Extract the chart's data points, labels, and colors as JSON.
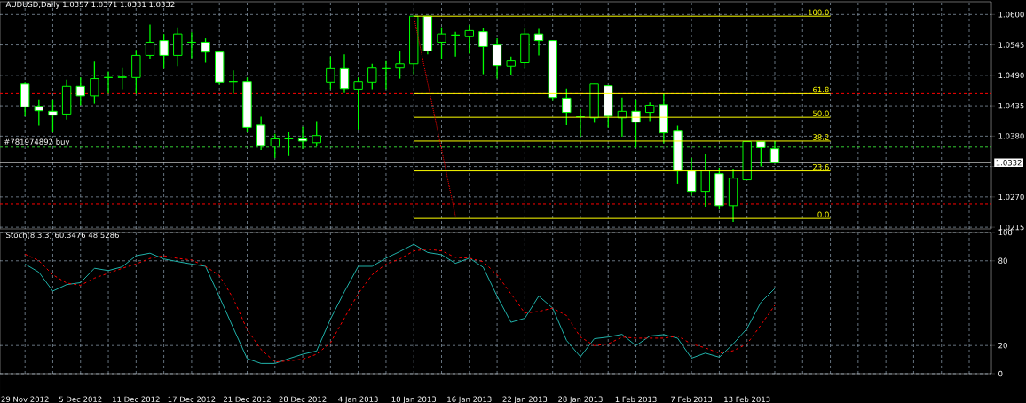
{
  "chart_data": [
    {
      "type": "candlestick",
      "title": "AUDUSD,Daily 1.0357 1.0371 1.0331 1.0332",
      "color": "#00ff00",
      "grid": true,
      "tick_labels": "y",
      "categories": [
        null,
        null,
        null,
        null,
        null,
        null,
        null,
        null,
        null,
        null,
        null,
        null,
        null,
        null,
        null,
        null,
        null,
        null,
        null,
        null,
        null,
        null,
        null,
        null,
        null,
        null,
        null,
        null,
        null,
        null,
        null,
        null,
        null,
        null,
        null,
        null,
        null,
        null,
        null,
        null,
        null,
        null,
        null,
        null,
        null,
        null,
        null,
        null,
        null,
        null,
        null,
        null,
        null,
        null,
        null,
        null,
        null,
        null,
        null,
        null,
        null,
        null,
        null,
        null,
        null,
        null,
        null,
        null,
        null,
        null
      ],
      "ohlc": [
        [
          1.0474,
          1.0478,
          1.0416,
          1.0433
        ],
        [
          1.0434,
          1.0445,
          1.0399,
          1.0426
        ],
        [
          1.0425,
          1.0445,
          1.0387,
          1.0418
        ],
        [
          1.042,
          1.0482,
          1.041,
          1.047
        ],
        [
          1.047,
          1.0486,
          1.0436,
          1.0453
        ],
        [
          1.0453,
          1.0515,
          1.0439,
          1.0484
        ],
        [
          1.0486,
          1.0497,
          1.0457,
          1.0486
        ],
        [
          1.0486,
          1.0503,
          1.0465,
          1.0487
        ],
        [
          1.0486,
          1.0536,
          1.0457,
          1.0526
        ],
        [
          1.0526,
          1.0582,
          1.052,
          1.055
        ],
        [
          1.0553,
          1.0565,
          1.0502,
          1.0526
        ],
        [
          1.0526,
          1.0577,
          1.0507,
          1.0565
        ],
        [
          1.055,
          1.0568,
          1.0521,
          1.055
        ],
        [
          1.055,
          1.0557,
          1.0513,
          1.0532
        ],
        [
          1.0532,
          1.0534,
          1.0473,
          1.0478
        ],
        [
          1.0479,
          1.0499,
          1.0457,
          1.0479
        ],
        [
          1.0479,
          1.0486,
          1.0387,
          1.0396
        ],
        [
          1.04,
          1.0415,
          1.0355,
          1.0363
        ],
        [
          1.0362,
          1.0384,
          1.0341,
          1.0375
        ],
        [
          1.0375,
          1.0387,
          1.0344,
          1.0375
        ],
        [
          1.0375,
          1.0397,
          1.0357,
          1.0371
        ],
        [
          1.0368,
          1.0407,
          1.0363,
          1.0381
        ],
        [
          1.0478,
          1.0524,
          1.0465,
          1.0502
        ],
        [
          1.0502,
          1.0528,
          1.0458,
          1.0466
        ],
        [
          1.0465,
          1.0486,
          1.0392,
          1.0479
        ],
        [
          1.0478,
          1.0511,
          1.0465,
          1.0503
        ],
        [
          1.0502,
          1.0516,
          1.0465,
          1.0502
        ],
        [
          1.0503,
          1.0534,
          1.0484,
          1.0511
        ],
        [
          1.0511,
          1.0597,
          1.0492,
          1.0597
        ],
        [
          1.0597,
          1.0597,
          1.0528,
          1.0534
        ],
        [
          1.055,
          1.0577,
          1.052,
          1.0565
        ],
        [
          1.0563,
          1.0569,
          1.0524,
          1.0563
        ],
        [
          1.056,
          1.0581,
          1.0529,
          1.0571
        ],
        [
          1.0569,
          1.0576,
          1.0492,
          1.0542
        ],
        [
          1.0545,
          1.0557,
          1.0484,
          1.0508
        ],
        [
          1.0507,
          1.0524,
          1.0491,
          1.0516
        ],
        [
          1.0513,
          1.0576,
          1.0502,
          1.0565
        ],
        [
          1.0565,
          1.0574,
          1.0526,
          1.0553
        ],
        [
          1.0553,
          1.0553,
          1.0444,
          1.045
        ],
        [
          1.0449,
          1.0466,
          1.04,
          1.0423
        ],
        [
          1.0415,
          1.0429,
          1.0379,
          1.0415
        ],
        [
          1.0413,
          1.0474,
          1.0404,
          1.0474
        ],
        [
          1.0471,
          1.0471,
          1.0396,
          1.0416
        ],
        [
          1.0413,
          1.045,
          1.0379,
          1.0425
        ],
        [
          1.0425,
          1.0445,
          1.0359,
          1.0405
        ],
        [
          1.0423,
          1.0441,
          1.0407,
          1.0436
        ],
        [
          1.0437,
          1.0457,
          1.0367,
          1.0386
        ],
        [
          1.0389,
          1.0399,
          1.0294,
          1.0317
        ],
        [
          1.0317,
          1.0341,
          1.0272,
          1.028
        ],
        [
          1.028,
          1.0347,
          1.0252,
          1.0318
        ],
        [
          1.0312,
          1.0323,
          1.0247,
          1.0254
        ],
        [
          1.0254,
          1.0321,
          1.0225,
          1.0304
        ],
        [
          1.0301,
          1.037,
          1.0301,
          1.037
        ],
        [
          1.037,
          1.037,
          1.0325,
          1.0359
        ],
        [
          1.0357,
          1.0371,
          1.0331,
          1.0332
        ],
        null,
        null,
        null,
        null,
        null,
        null,
        null,
        null,
        null,
        null,
        null,
        null,
        null,
        null,
        null
      ],
      "series": [
        {
          "type": "line",
          "name": "100.0",
          "color": "#ffff00",
          "values": [
            null,
            null,
            null,
            null,
            null,
            null,
            null,
            null,
            null,
            null,
            null,
            null,
            null,
            null,
            null,
            null,
            null,
            null,
            null,
            null,
            null,
            null,
            null,
            null,
            null,
            null,
            null,
            null,
            1.0597,
            1.0597,
            1.0597,
            1.0597,
            1.0597,
            1.0597,
            1.0597,
            1.0597,
            1.0597,
            1.0597,
            1.0597,
            1.0597,
            1.0597,
            1.0597,
            1.0597,
            1.0597,
            1.0597,
            1.0597,
            1.0597,
            1.0597,
            1.0597,
            1.0597,
            1.0597,
            1.0597,
            1.0597,
            1.0597,
            1.0597,
            1.0597,
            1.0597,
            1.0597,
            1.0597,
            null,
            null,
            null,
            null,
            null,
            null,
            null,
            null,
            null,
            null,
            null
          ]
        },
        {
          "type": "line",
          "name": "61.8",
          "color": "#ffff00",
          "values": [
            null,
            null,
            null,
            null,
            null,
            null,
            null,
            null,
            null,
            null,
            null,
            null,
            null,
            null,
            null,
            null,
            null,
            null,
            null,
            null,
            null,
            null,
            null,
            null,
            null,
            null,
            null,
            null,
            1.0457,
            1.0457,
            1.0457,
            1.0457,
            1.0457,
            1.0457,
            1.0457,
            1.0457,
            1.0457,
            1.0457,
            1.0457,
            1.0457,
            1.0457,
            1.0457,
            1.0457,
            1.0457,
            1.0457,
            1.0457,
            1.0457,
            1.0457,
            1.0457,
            1.0457,
            1.0457,
            1.0457,
            1.0457,
            1.0457,
            1.0457,
            1.0457,
            1.0457,
            1.0457,
            1.0457,
            null,
            null,
            null,
            null,
            null,
            null,
            null,
            null,
            null,
            null,
            null
          ]
        },
        {
          "type": "line",
          "name": "50.0",
          "color": "#ffff00",
          "values": [
            null,
            null,
            null,
            null,
            null,
            null,
            null,
            null,
            null,
            null,
            null,
            null,
            null,
            null,
            null,
            null,
            null,
            null,
            null,
            null,
            null,
            null,
            null,
            null,
            null,
            null,
            null,
            null,
            1.0414,
            1.0414,
            1.0414,
            1.0414,
            1.0414,
            1.0414,
            1.0414,
            1.0414,
            1.0414,
            1.0414,
            1.0414,
            1.0414,
            1.0414,
            1.0414,
            1.0414,
            1.0414,
            1.0414,
            1.0414,
            1.0414,
            1.0414,
            1.0414,
            1.0414,
            1.0414,
            1.0414,
            1.0414,
            1.0414,
            1.0414,
            1.0414,
            1.0414,
            1.0414,
            1.0414,
            null,
            null,
            null,
            null,
            null,
            null,
            null,
            null,
            null,
            null,
            null
          ]
        },
        {
          "type": "line",
          "name": "38.2",
          "color": "#ffff00",
          "values": [
            null,
            null,
            null,
            null,
            null,
            null,
            null,
            null,
            null,
            null,
            null,
            null,
            null,
            null,
            null,
            null,
            null,
            null,
            null,
            null,
            null,
            null,
            null,
            null,
            null,
            null,
            null,
            null,
            1.0371,
            1.0371,
            1.0371,
            1.0371,
            1.0371,
            1.0371,
            1.0371,
            1.0371,
            1.0371,
            1.0371,
            1.0371,
            1.0371,
            1.0371,
            1.0371,
            1.0371,
            1.0371,
            1.0371,
            1.0371,
            1.0371,
            1.0371,
            1.0371,
            1.0371,
            1.0371,
            1.0371,
            1.0371,
            1.0371,
            1.0371,
            1.0371,
            1.0371,
            1.0371,
            1.0371,
            null,
            null,
            null,
            null,
            null,
            null,
            null,
            null,
            null,
            null,
            null
          ]
        },
        {
          "type": "line",
          "name": "23.6",
          "color": "#ffff00",
          "values": [
            null,
            null,
            null,
            null,
            null,
            null,
            null,
            null,
            null,
            null,
            null,
            null,
            null,
            null,
            null,
            null,
            null,
            null,
            null,
            null,
            null,
            null,
            null,
            null,
            null,
            null,
            null,
            null,
            1.0317,
            1.0317,
            1.0317,
            1.0317,
            1.0317,
            1.0317,
            1.0317,
            1.0317,
            1.0317,
            1.0317,
            1.0317,
            1.0317,
            1.0317,
            1.0317,
            1.0317,
            1.0317,
            1.0317,
            1.0317,
            1.0317,
            1.0317,
            1.0317,
            1.0317,
            1.0317,
            1.0317,
            1.0317,
            1.0317,
            1.0317,
            1.0317,
            1.0317,
            1.0317,
            1.0317,
            null,
            null,
            null,
            null,
            null,
            null,
            null,
            null,
            null,
            null,
            null
          ]
        },
        {
          "type": "line",
          "name": "0.0",
          "color": "#ffff00",
          "values": [
            null,
            null,
            null,
            null,
            null,
            null,
            null,
            null,
            null,
            null,
            null,
            null,
            null,
            null,
            null,
            null,
            null,
            null,
            null,
            null,
            null,
            null,
            null,
            null,
            null,
            null,
            null,
            null,
            1.0231,
            1.0231,
            1.0231,
            1.0231,
            1.0231,
            1.0231,
            1.0231,
            1.0231,
            1.0231,
            1.0231,
            1.0231,
            1.0231,
            1.0231,
            1.0231,
            1.0231,
            1.0231,
            1.0231,
            1.0231,
            1.0231,
            1.0231,
            1.0231,
            1.0231,
            1.0231,
            1.0231,
            1.0231,
            1.0231,
            1.0231,
            1.0231,
            1.0231,
            1.0231,
            1.0231,
            null,
            null,
            null,
            null,
            null,
            null,
            null,
            null,
            null,
            null,
            null
          ]
        },
        {
          "type": "line",
          "color": "#ff0000",
          "line_style": "dotted",
          "values": [
            null,
            null,
            null,
            null,
            null,
            null,
            null,
            null,
            null,
            null,
            null,
            null,
            null,
            null,
            null,
            null,
            null,
            null,
            null,
            null,
            null,
            null,
            null,
            null,
            null,
            null,
            null,
            null,
            1.0597,
            1.0476,
            1.0356,
            1.0235,
            null,
            null,
            null,
            null,
            null,
            null,
            null,
            null,
            null,
            null,
            null,
            null,
            null,
            null,
            null,
            null,
            null,
            null,
            null,
            null,
            null,
            null,
            null,
            null,
            null,
            null,
            null,
            null,
            null,
            null,
            null,
            null,
            null,
            null,
            null,
            null,
            null,
            null
          ]
        }
      ],
      "ref_lines": [
        {
          "axis": "y",
          "value": 1.0457,
          "color": "#ff0000",
          "line_style": "dashed"
        },
        {
          "axis": "y",
          "value": 1.0257,
          "color": "#ff0000",
          "line_style": "dashed"
        },
        {
          "axis": "y",
          "value": 1.036,
          "color": "#32cd32",
          "line_style": "dashed",
          "label": "#781974892 buy"
        },
        {
          "axis": "y",
          "value": 1.0332,
          "color": "#c0c0c0",
          "line_style": "solid",
          "label": "1.0332"
        }
      ],
      "ylim": [
        1.0212,
        1.0623
      ],
      "yticks": [
        {
          "value": 1.06,
          "label": "1.0600"
        },
        {
          "value": 1.0545,
          "label": "1.0545"
        },
        {
          "value": 1.049,
          "label": "1.0490"
        },
        {
          "value": 1.0435,
          "label": "1.0435"
        },
        {
          "value": 1.038,
          "label": "1.0380"
        },
        {
          "value": 1.0325,
          "label": null
        },
        {
          "value": 1.027,
          "label": "1.0270"
        },
        {
          "value": 1.0215,
          "label": "1.0215"
        }
      ]
    },
    {
      "type": "line",
      "title": "Stoch(8,3,3) 60.3476 48.5286",
      "grid": true,
      "categories": [
        "29 Nov 2012",
        null,
        null,
        null,
        "5 Dec 2012",
        null,
        null,
        null,
        "11 Dec 2012",
        null,
        null,
        null,
        "17 Dec 2012",
        null,
        null,
        null,
        "21 Dec 2012",
        null,
        null,
        null,
        "28 Dec 2012",
        null,
        null,
        null,
        "4 Jan 2013",
        null,
        null,
        null,
        "10 Jan 2013",
        null,
        null,
        null,
        "16 Jan 2013",
        null,
        null,
        null,
        "22 Jan 2013",
        null,
        null,
        null,
        "28 Jan 2013",
        null,
        null,
        null,
        "1 Feb 2013",
        null,
        null,
        null,
        "7 Feb 2013",
        null,
        null,
        null,
        "13 Feb 2013",
        null,
        null,
        null,
        null,
        null,
        null,
        null,
        null,
        null,
        null,
        null,
        null,
        null,
        null,
        null,
        null,
        null
      ],
      "series": [
        {
          "color": "#20b2aa",
          "line_style": "solid",
          "values": [
            77.7,
            71.9,
            58.5,
            63.1,
            64.5,
            74.7,
            73.1,
            75.7,
            83.6,
            85.4,
            81.3,
            79.4,
            77.7,
            76.1,
            54.5,
            32.4,
            10.7,
            7.3,
            7.3,
            10.7,
            13.8,
            16.1,
            38.7,
            58.0,
            76.1,
            76.1,
            81.9,
            86.6,
            91.7,
            85.9,
            84.3,
            78.2,
            81.9,
            75.4,
            54.9,
            36.4,
            39.3,
            55.0,
            46.5,
            23.6,
            12.0,
            24.8,
            26.0,
            27.9,
            19.9,
            26.7,
            27.7,
            25.2,
            11.0,
            14.6,
            11.7,
            21.1,
            32.0,
            50.6,
            60.3,
            null,
            null,
            null,
            null,
            null,
            null,
            null,
            null,
            null,
            null,
            null,
            null,
            null,
            null,
            null
          ]
        },
        {
          "color": "#ff0000",
          "line_style": "dashed",
          "values": [
            84.7,
            80.1,
            70.1,
            64.2,
            62.6,
            67.7,
            71.2,
            74.7,
            77.7,
            81.7,
            83.6,
            81.7,
            80.6,
            76.1,
            69.6,
            53.3,
            31.2,
            17.2,
            8.4,
            9.1,
            10.3,
            13.8,
            21.9,
            39.4,
            56.8,
            70.1,
            77.7,
            81.3,
            87.0,
            88.2,
            87.0,
            82.4,
            81.9,
            79.4,
            70.1,
            56.5,
            42.9,
            44.1,
            46.5,
            41.2,
            26.0,
            19.9,
            21.1,
            26.0,
            25.2,
            25.2,
            25.2,
            26.7,
            21.1,
            18.3,
            14.6,
            16.3,
            21.1,
            34.5,
            48.5,
            null,
            null,
            null,
            null,
            null,
            null,
            null,
            null,
            null,
            null,
            null,
            null,
            null,
            null,
            null
          ]
        }
      ],
      "ylim": [
        0,
        100
      ],
      "yticks": [
        0,
        20,
        80,
        100
      ]
    }
  ]
}
